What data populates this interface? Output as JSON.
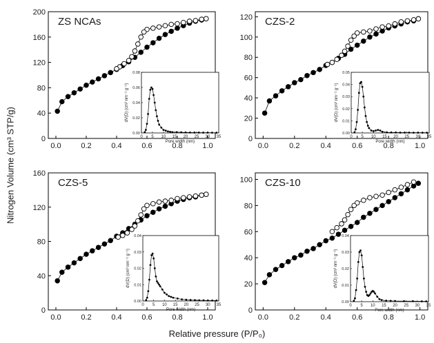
{
  "figure": {
    "ylabel": "Nitrogen Volume (cm³ STP/g)",
    "xlabel": "Relative pressure (P/P₀)"
  },
  "chart_data": [
    {
      "type": "scatter",
      "title": "ZS NCAs",
      "xlim": [
        -0.05,
        1.05
      ],
      "ylim": [
        0,
        200
      ],
      "xticks": [
        "0.0",
        "0.2",
        "0.4",
        "0.6",
        "0.8",
        "1.0"
      ],
      "yticks": [
        "0",
        "40",
        "80",
        "120",
        "160",
        "200"
      ],
      "series": [
        {
          "marker": "filled",
          "x": [
            0.01,
            0.04,
            0.08,
            0.12,
            0.16,
            0.2,
            0.24,
            0.28,
            0.32,
            0.36,
            0.4,
            0.44,
            0.48,
            0.52,
            0.56,
            0.6,
            0.64,
            0.68,
            0.72,
            0.76,
            0.8,
            0.84,
            0.88,
            0.92,
            0.96,
            0.99
          ],
          "y": [
            43,
            58,
            66,
            72,
            78,
            84,
            89,
            94,
            99,
            104,
            109,
            115,
            121,
            128,
            136,
            144,
            151,
            158,
            164,
            169,
            174,
            178,
            182,
            185,
            187,
            189
          ]
        },
        {
          "marker": "open",
          "x": [
            0.99,
            0.96,
            0.92,
            0.88,
            0.84,
            0.8,
            0.76,
            0.72,
            0.68,
            0.64,
            0.6,
            0.58,
            0.56,
            0.54,
            0.52,
            0.5,
            0.48,
            0.45,
            0.42,
            0.4
          ],
          "y": [
            189,
            188,
            186,
            185,
            183,
            181,
            180,
            178,
            176,
            174,
            172,
            168,
            160,
            149,
            138,
            129,
            123,
            118,
            113,
            110
          ]
        }
      ],
      "inset": {
        "xlabel": "Pore width (nm)",
        "ylabel": "dV(D) (cm³ nm⁻¹ g⁻¹)",
        "xlim": [
          0,
          35
        ],
        "ylim": [
          0,
          0.08
        ],
        "xticks": [
          "0",
          "5",
          "10",
          "15",
          "20",
          "25",
          "30",
          "35"
        ],
        "yticks": [
          "0.00",
          "0.02",
          "0.04",
          "0.06",
          "0.08"
        ],
        "x": [
          1.5,
          2,
          2.5,
          3,
          3.5,
          4,
          4.5,
          5,
          5.5,
          6,
          6.5,
          7,
          7.5,
          8,
          9,
          10,
          11,
          12,
          13,
          14,
          16,
          18,
          20,
          22,
          24,
          26,
          28,
          30,
          32,
          34
        ],
        "y": [
          0.001,
          0.004,
          0.012,
          0.025,
          0.045,
          0.057,
          0.06,
          0.058,
          0.05,
          0.04,
          0.03,
          0.022,
          0.016,
          0.011,
          0.007,
          0.004,
          0.003,
          0.002,
          0.0015,
          0.001,
          0.001,
          0.0008,
          0.0007,
          0.0006,
          0.0005,
          0.0005,
          0.0004,
          0.0004,
          0.0003,
          0.0003
        ]
      }
    },
    {
      "type": "scatter",
      "title": "CZS-2",
      "xlim": [
        -0.05,
        1.05
      ],
      "ylim": [
        0,
        125
      ],
      "xticks": [
        "0.0",
        "0.2",
        "0.4",
        "0.6",
        "0.8",
        "1.0"
      ],
      "yticks": [
        "0",
        "20",
        "40",
        "60",
        "80",
        "100",
        "120"
      ],
      "series": [
        {
          "marker": "filled",
          "x": [
            0.01,
            0.04,
            0.08,
            0.12,
            0.16,
            0.2,
            0.24,
            0.28,
            0.32,
            0.36,
            0.4,
            0.44,
            0.48,
            0.52,
            0.56,
            0.6,
            0.64,
            0.68,
            0.72,
            0.76,
            0.8,
            0.84,
            0.88,
            0.92,
            0.96,
            0.99
          ],
          "y": [
            25,
            37,
            42,
            47,
            51,
            55,
            58,
            62,
            65,
            68,
            72,
            75,
            79,
            83,
            88,
            92,
            96,
            100,
            103,
            106,
            109,
            111,
            113,
            115,
            116,
            118
          ]
        },
        {
          "marker": "open",
          "x": [
            0.99,
            0.96,
            0.92,
            0.88,
            0.84,
            0.8,
            0.76,
            0.72,
            0.68,
            0.64,
            0.6,
            0.58,
            0.56,
            0.54,
            0.52,
            0.5,
            0.47,
            0.44,
            0.41
          ],
          "y": [
            118,
            117,
            116,
            115,
            113,
            111,
            110,
            108,
            106,
            105,
            104,
            101,
            97,
            91,
            86,
            82,
            78,
            75,
            73
          ]
        }
      ],
      "inset": {
        "xlabel": "Pore width (nm)",
        "ylabel": "dV(D) (cm³ nm⁻¹ g⁻¹)",
        "xlim": [
          0,
          35
        ],
        "ylim": [
          0,
          0.05
        ],
        "xticks": [
          "0",
          "5",
          "10",
          "15",
          "20",
          "25",
          "30",
          "35"
        ],
        "yticks": [
          "0.00",
          "0.01",
          "0.02",
          "0.03",
          "0.04",
          "0.05"
        ],
        "x": [
          1.5,
          2,
          2.5,
          3,
          3.5,
          4,
          4.5,
          5,
          5.5,
          6,
          6.5,
          7,
          7.5,
          8,
          9,
          10,
          11,
          12,
          13,
          14,
          16,
          18,
          20,
          22,
          24,
          26,
          28,
          30,
          32,
          34
        ],
        "y": [
          0.0005,
          0.003,
          0.009,
          0.019,
          0.033,
          0.041,
          0.042,
          0.038,
          0.03,
          0.021,
          0.014,
          0.009,
          0.006,
          0.004,
          0.002,
          0.0015,
          0.002,
          0.0025,
          0.002,
          0.001,
          0.0005,
          0.0004,
          0.0004,
          0.0003,
          0.0003,
          0.0003,
          0.0002,
          0.0002,
          0.0002,
          0.0002
        ]
      }
    },
    {
      "type": "scatter",
      "title": "CZS-5",
      "xlim": [
        -0.05,
        1.05
      ],
      "ylim": [
        0,
        160
      ],
      "xticks": [
        "0.0",
        "0.2",
        "0.4",
        "0.6",
        "0.8",
        "1.0"
      ],
      "yticks": [
        "0",
        "40",
        "80",
        "120",
        "160"
      ],
      "series": [
        {
          "marker": "filled",
          "x": [
            0.01,
            0.04,
            0.08,
            0.12,
            0.16,
            0.2,
            0.24,
            0.28,
            0.32,
            0.36,
            0.4,
            0.44,
            0.48,
            0.52,
            0.56,
            0.6,
            0.64,
            0.68,
            0.72,
            0.76,
            0.8,
            0.84,
            0.88,
            0.92,
            0.96,
            0.99
          ],
          "y": [
            34,
            44,
            50,
            55,
            60,
            65,
            69,
            73,
            77,
            81,
            86,
            90,
            95,
            100,
            105,
            110,
            114,
            118,
            121,
            124,
            127,
            129,
            131,
            132,
            134,
            135
          ]
        },
        {
          "marker": "open",
          "x": [
            0.99,
            0.96,
            0.92,
            0.88,
            0.84,
            0.8,
            0.76,
            0.72,
            0.68,
            0.64,
            0.6,
            0.58,
            0.56,
            0.54,
            0.52,
            0.5,
            0.47,
            0.44,
            0.41
          ],
          "y": [
            135,
            134,
            133,
            132,
            131,
            130,
            128,
            127,
            126,
            124,
            122,
            118,
            111,
            104,
            98,
            94,
            90,
            87,
            85
          ]
        }
      ],
      "inset": {
        "xlabel": "Pore width (nm)",
        "ylabel": "dV(D) (cm³ nm⁻¹ g⁻¹)",
        "xlim": [
          0,
          35
        ],
        "ylim": [
          0,
          0.04
        ],
        "xticks": [
          "0",
          "5",
          "10",
          "15",
          "20",
          "25",
          "30",
          "35"
        ],
        "yticks": [
          "0.00",
          "0.01",
          "0.02",
          "0.03",
          "0.04"
        ],
        "x": [
          1.5,
          2,
          2.5,
          3,
          3.5,
          4,
          4.5,
          5,
          5.5,
          6,
          6.5,
          7,
          7.5,
          8,
          9,
          10,
          11,
          12,
          13,
          14,
          16,
          18,
          20,
          22,
          24,
          26,
          28,
          30,
          32,
          34
        ],
        "y": [
          0.0005,
          0.002,
          0.006,
          0.013,
          0.022,
          0.028,
          0.029,
          0.026,
          0.02,
          0.015,
          0.012,
          0.011,
          0.01,
          0.009,
          0.007,
          0.005,
          0.004,
          0.003,
          0.0025,
          0.002,
          0.0015,
          0.001,
          0.0008,
          0.0006,
          0.0005,
          0.0004,
          0.0004,
          0.0003,
          0.0003,
          0.0003
        ]
      }
    },
    {
      "type": "scatter",
      "title": "CZS-10",
      "xlim": [
        -0.05,
        1.05
      ],
      "ylim": [
        0,
        105
      ],
      "xticks": [
        "0.0",
        "0.2",
        "0.4",
        "0.6",
        "0.8",
        "1.0"
      ],
      "yticks": [
        "0",
        "20",
        "40",
        "60",
        "80",
        "100"
      ],
      "series": [
        {
          "marker": "filled",
          "x": [
            0.01,
            0.04,
            0.08,
            0.12,
            0.16,
            0.2,
            0.24,
            0.28,
            0.32,
            0.36,
            0.4,
            0.44,
            0.48,
            0.52,
            0.56,
            0.6,
            0.64,
            0.68,
            0.72,
            0.76,
            0.8,
            0.84,
            0.88,
            0.92,
            0.96,
            0.99
          ],
          "y": [
            21,
            27,
            31,
            34,
            37,
            40,
            42,
            45,
            47,
            50,
            53,
            55,
            58,
            61,
            64,
            67,
            71,
            74,
            77,
            80,
            83,
            86,
            89,
            92,
            95,
            97
          ]
        },
        {
          "marker": "open",
          "x": [
            0.96,
            0.92,
            0.88,
            0.84,
            0.8,
            0.76,
            0.72,
            0.68,
            0.64,
            0.6,
            0.58,
            0.56,
            0.54,
            0.52,
            0.5,
            0.47,
            0.44
          ],
          "y": [
            98,
            96,
            94,
            92,
            90,
            88,
            87,
            86,
            84,
            82,
            80,
            77,
            73,
            69,
            66,
            63,
            60
          ]
        }
      ],
      "inset": {
        "xlabel": "Pore width (nm)",
        "ylabel": "dV(D) (cm³ nm⁻¹ g⁻¹)",
        "xlim": [
          0,
          35
        ],
        "ylim": [
          0,
          0.04
        ],
        "xticks": [
          "0",
          "5",
          "10",
          "15",
          "20",
          "25",
          "30",
          "35"
        ],
        "yticks": [
          "0.00",
          "0.01",
          "0.02",
          "0.03",
          "0.04"
        ],
        "x": [
          1.5,
          2,
          2.5,
          3,
          3.5,
          4,
          4.5,
          5,
          5.5,
          6,
          6.5,
          7,
          7.5,
          8,
          8.5,
          9,
          9.5,
          10,
          10.5,
          11,
          12,
          13,
          14,
          16,
          18,
          20,
          24,
          28,
          32,
          34
        ],
        "y": [
          0.0005,
          0.002,
          0.007,
          0.014,
          0.024,
          0.03,
          0.031,
          0.028,
          0.021,
          0.014,
          0.009,
          0.006,
          0.004,
          0.0035,
          0.004,
          0.005,
          0.006,
          0.0065,
          0.006,
          0.005,
          0.003,
          0.0015,
          0.001,
          0.0006,
          0.0005,
          0.0004,
          0.0003,
          0.0003,
          0.0002,
          0.0002
        ]
      }
    }
  ]
}
